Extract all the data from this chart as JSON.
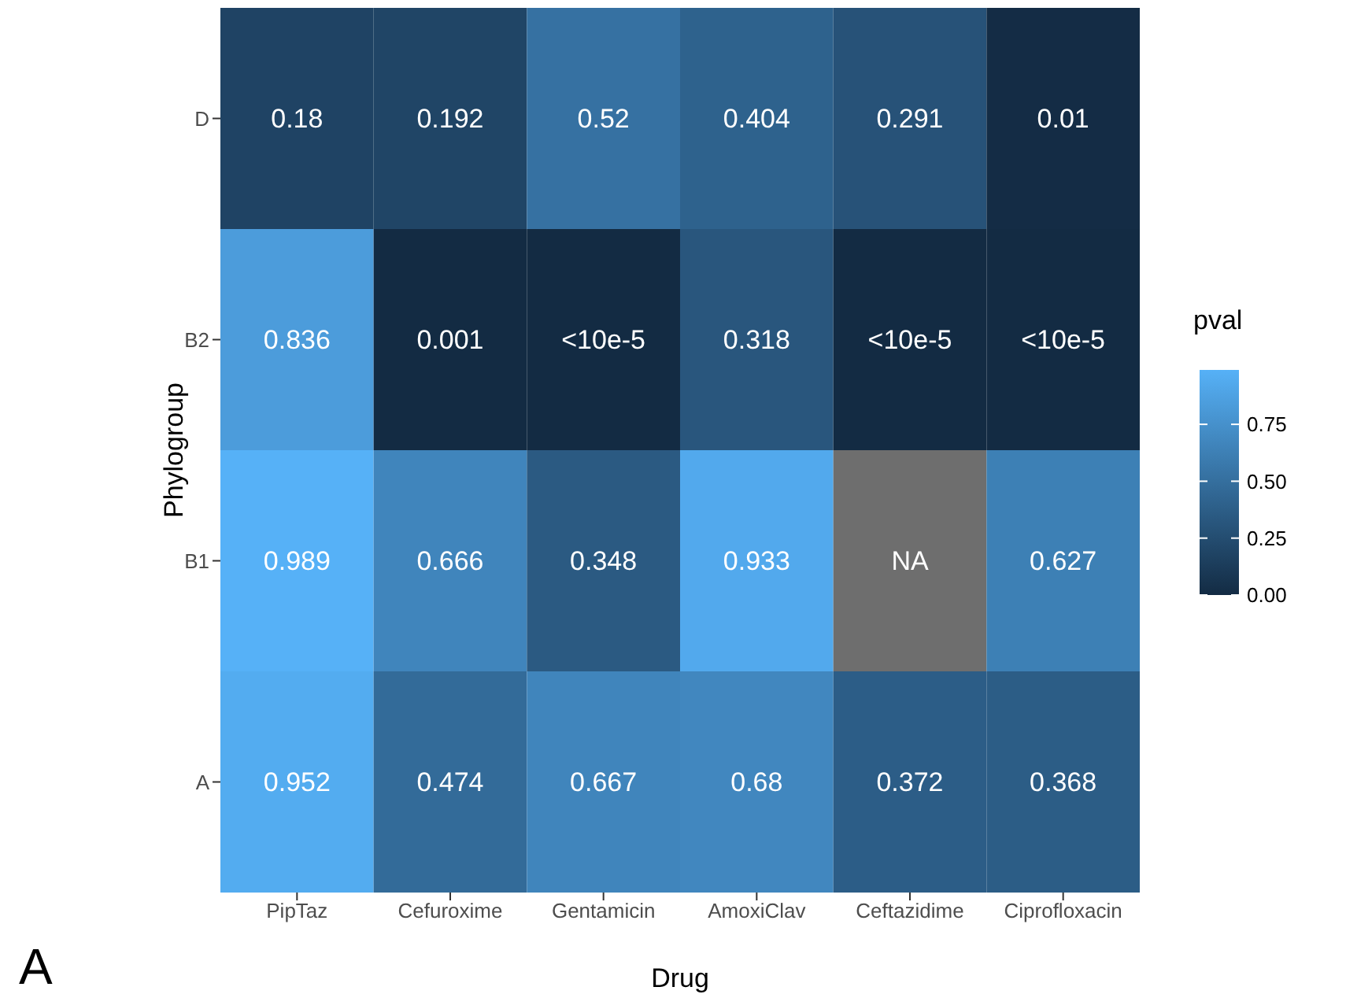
{
  "chart_data": {
    "type": "heatmap",
    "xlabel": "Drug",
    "ylabel": "Phylogroup",
    "legend_title": "pval",
    "categories": [
      "PipTaz",
      "Cefuroxime",
      "Gentamicin",
      "AmoxiClav",
      "Ceftazidime",
      "Ciprofloxacin"
    ],
    "y_categories": [
      "D",
      "B2",
      "B1",
      "A"
    ],
    "cells": [
      [
        0.18,
        0.192,
        0.52,
        0.404,
        0.291,
        0.01
      ],
      [
        0.836,
        0.001,
        0,
        0.318,
        0,
        0
      ],
      [
        0.989,
        0.666,
        0.348,
        0.933,
        null,
        0.627
      ],
      [
        0.952,
        0.474,
        0.667,
        0.68,
        0.372,
        0.368
      ]
    ],
    "cell_labels": [
      [
        "0.18",
        "0.192",
        "0.52",
        "0.404",
        "0.291",
        "0.01"
      ],
      [
        "0.836",
        "0.001",
        "<10e-5",
        "0.318",
        "<10e-5",
        "<10e-5"
      ],
      [
        "0.989",
        "0.666",
        "0.348",
        "0.933",
        "NA",
        "0.627"
      ],
      [
        "0.952",
        "0.474",
        "0.667",
        "0.68",
        "0.372",
        "0.368"
      ]
    ],
    "clim": [
      0,
      0.989
    ],
    "cticks": [
      {
        "value": 0,
        "label": "0.00"
      },
      {
        "value": 0.25,
        "label": "0.25"
      },
      {
        "value": 0.5,
        "label": "0.50"
      },
      {
        "value": 0.75,
        "label": "0.75"
      }
    ],
    "annotations": [
      "A"
    ]
  }
}
